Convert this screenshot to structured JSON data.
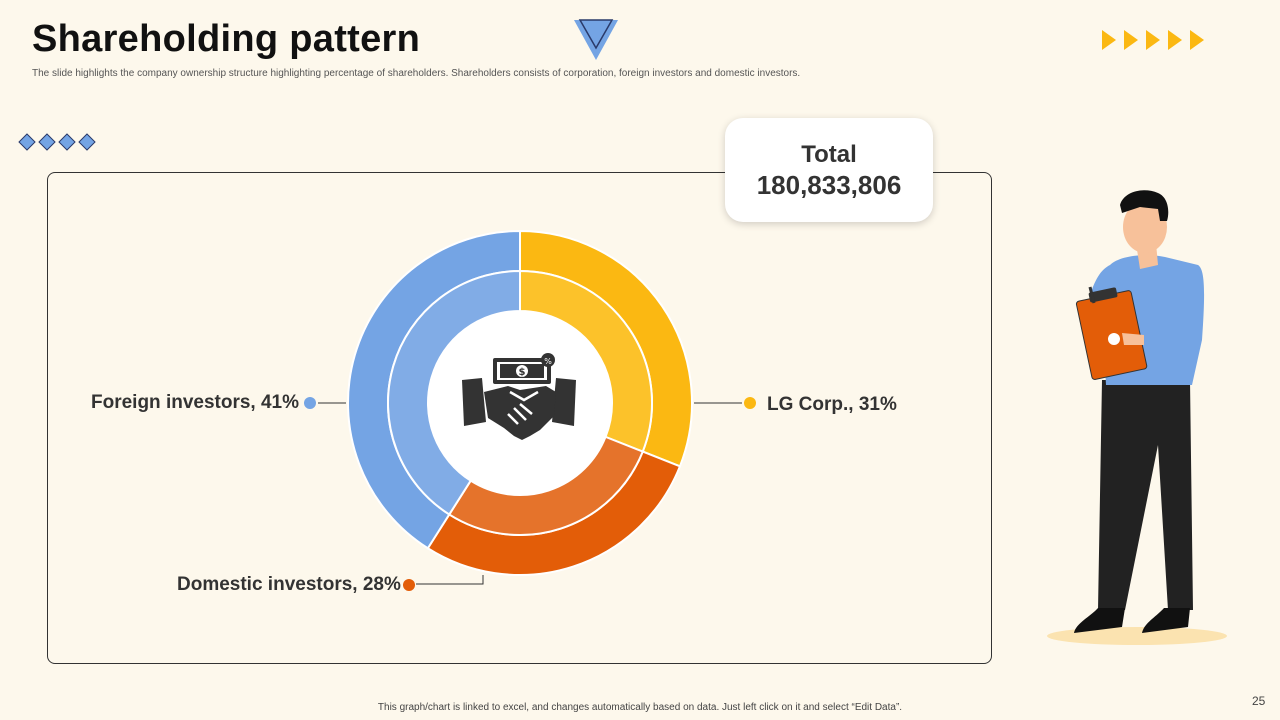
{
  "slide": {
    "title": "Shareholding pattern",
    "subtitle": "The slide highlights the company ownership structure highlighting percentage of shareholders. Shareholders consists of corporation, foreign investors and domestic investors.",
    "footer_note": "This graph/chart is linked to excel, and changes automatically based on data. Just left click on it and select “Edit Data”.",
    "page_number": "25"
  },
  "total": {
    "label": "Total",
    "value": "180,833,806"
  },
  "center_icon": "handshake-money-icon",
  "chart_data": {
    "type": "pie",
    "variant": "donut",
    "slices": [
      {
        "name": "LG Corp.",
        "value": 31,
        "label": "LG Corp., 31%",
        "color": "#fbb812",
        "inner_color": "#fcc22a"
      },
      {
        "name": "Domestic investors",
        "value": 28,
        "label": "Domestic investors, 28%",
        "color": "#e35d08",
        "inner_color": "#e5732b"
      },
      {
        "name": "Foreign investors",
        "value": 41,
        "label": "Foreign investors, 41%",
        "color": "#74a4e4",
        "inner_color": "#81ace6"
      }
    ],
    "legend": "outside-labels"
  },
  "colors": {
    "background": "#fdf8ec",
    "accent_yellow": "#fbb812",
    "accent_blue": "#74a4e4",
    "accent_orange": "#e35d08"
  }
}
